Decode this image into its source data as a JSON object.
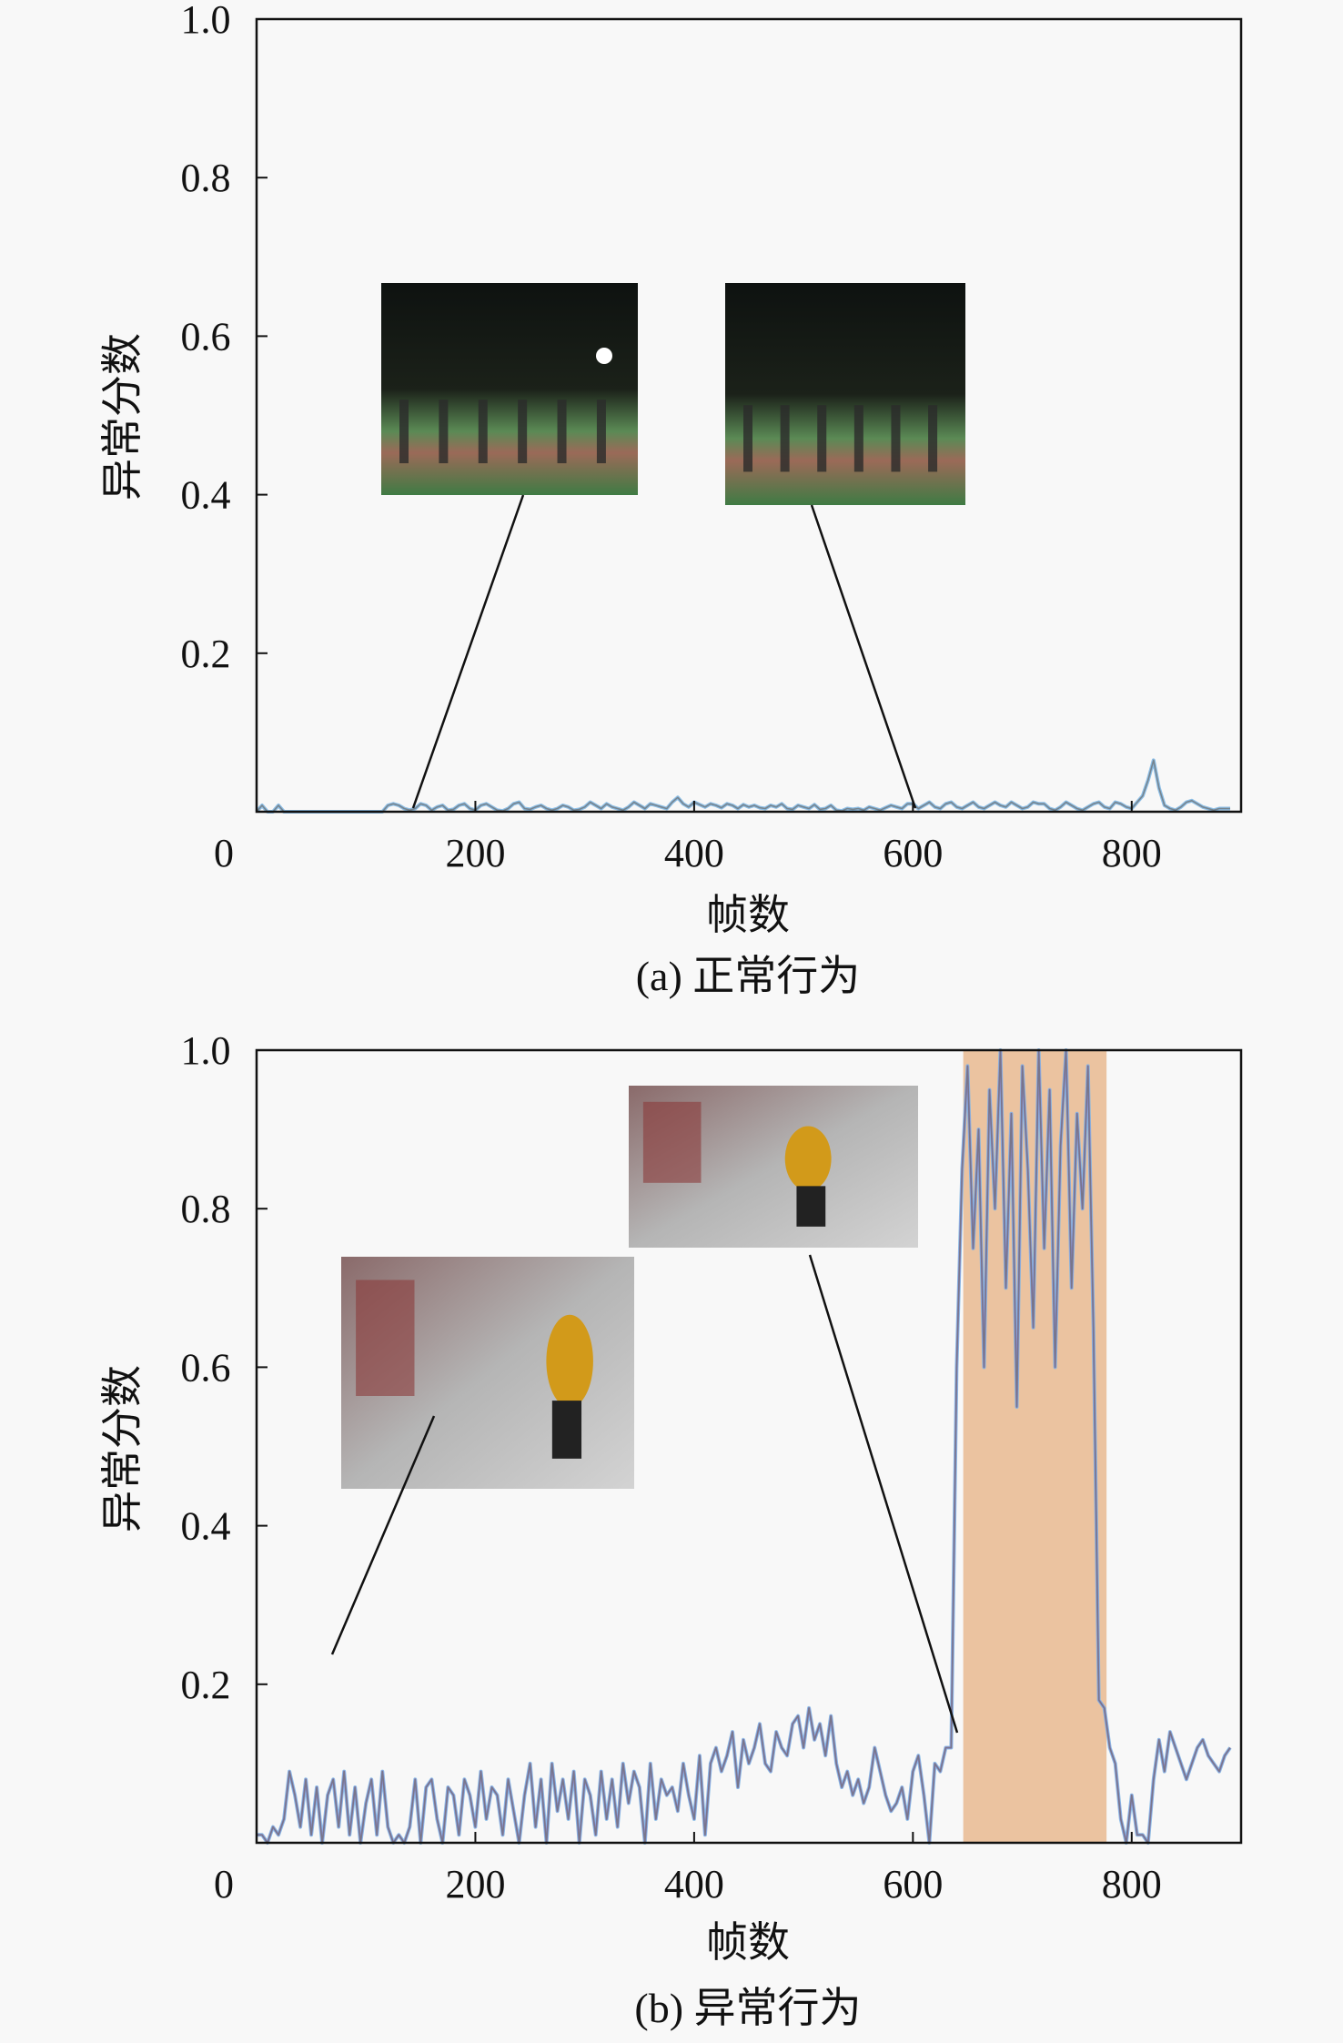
{
  "chart_data": [
    {
      "type": "line",
      "caption": "(a) 正常行为",
      "xlabel": "帧数",
      "ylabel": "异常分数",
      "xlim": [
        0,
        900
      ],
      "ylim": [
        0,
        1.0
      ],
      "x_ticks": [
        "0",
        "200",
        "400",
        "600",
        "800"
      ],
      "x_tick_values": [
        0,
        200,
        400,
        600,
        800
      ],
      "y_ticks": [
        "0.2",
        "0.4",
        "0.6",
        "0.8",
        "1.0"
      ],
      "y_tick_values": [
        0.2,
        0.4,
        0.6,
        0.8,
        1.0
      ],
      "grid": false,
      "x_step": 5,
      "values": [
        0,
        0.008,
        0,
        0,
        0.008,
        0,
        0,
        0,
        0,
        0,
        0,
        0,
        0,
        0,
        0,
        0,
        0,
        0,
        0,
        0,
        0,
        0,
        0,
        0,
        0.008,
        0.01,
        0.008,
        0.004,
        0.002,
        0.004,
        0.01,
        0.008,
        0.002,
        0.006,
        0.008,
        0.002,
        0.003,
        0.008,
        0.01,
        0.004,
        0.002,
        0.008,
        0.01,
        0.006,
        0.002,
        0.001,
        0.004,
        0.01,
        0.012,
        0.004,
        0.003,
        0.006,
        0.008,
        0.004,
        0.002,
        0.004,
        0.008,
        0.006,
        0.002,
        0.003,
        0.006,
        0.012,
        0.008,
        0.004,
        0.01,
        0.006,
        0.004,
        0.002,
        0.006,
        0.012,
        0.008,
        0.004,
        0.01,
        0.008,
        0.006,
        0.004,
        0.012,
        0.018,
        0.01,
        0.006,
        0.012,
        0.009,
        0.006,
        0.01,
        0.008,
        0.005,
        0.01,
        0.008,
        0.004,
        0.009,
        0.006,
        0.008,
        0.005,
        0.004,
        0.008,
        0.006,
        0.01,
        0.004,
        0.003,
        0.008,
        0.006,
        0.004,
        0.009,
        0.003,
        0.004,
        0.008,
        0.002,
        0.001,
        0.004,
        0.003,
        0.004,
        0.002,
        0.006,
        0.004,
        0.002,
        0.005,
        0.008,
        0.006,
        0.004,
        0.01,
        0.01,
        0.004,
        0.008,
        0.012,
        0.006,
        0.004,
        0.01,
        0.012,
        0.006,
        0.004,
        0.008,
        0.012,
        0.006,
        0.004,
        0.008,
        0.012,
        0.008,
        0.006,
        0.012,
        0.008,
        0.004,
        0.006,
        0.012,
        0.01,
        0.01,
        0.004,
        0.002,
        0.006,
        0.012,
        0.008,
        0.004,
        0.002,
        0.006,
        0.01,
        0.012,
        0.006,
        0.004,
        0.012,
        0.01,
        0.006,
        0.004,
        0.012,
        0.02,
        0.04,
        0.065,
        0.03,
        0.008,
        0.004,
        0.002,
        0.006,
        0.012,
        0.014,
        0.01,
        0.006,
        0.004,
        0.002,
        0.004,
        0.004,
        0.004
      ],
      "line_colors": [
        "#7fb7e3",
        "#707070"
      ],
      "insets": [
        {
          "kind": "night-field-photo",
          "points_to_frame": 140
        },
        {
          "kind": "night-field-photo",
          "points_to_frame": 600
        }
      ]
    },
    {
      "type": "line",
      "caption": "(b) 异常行为",
      "xlabel": "帧数",
      "ylabel": "异常分数",
      "xlim": [
        0,
        900
      ],
      "ylim": [
        0,
        1.0
      ],
      "x_ticks": [
        "0",
        "200",
        "400",
        "600",
        "800"
      ],
      "x_tick_values": [
        0,
        200,
        400,
        600,
        800
      ],
      "y_ticks": [
        "0.2",
        "0.4",
        "0.6",
        "0.8",
        "1.0"
      ],
      "y_tick_values": [
        0.2,
        0.4,
        0.6,
        0.8,
        1.0
      ],
      "grid": false,
      "x_step": 5,
      "values": [
        0.01,
        0.01,
        0.0,
        0.02,
        0.01,
        0.03,
        0.09,
        0.06,
        0.02,
        0.08,
        0.01,
        0.07,
        0.0,
        0.06,
        0.08,
        0.02,
        0.09,
        0.01,
        0.07,
        0.0,
        0.05,
        0.08,
        0.01,
        0.09,
        0.02,
        0.0,
        0.01,
        0.0,
        0.02,
        0.08,
        0.0,
        0.07,
        0.08,
        0.03,
        0.0,
        0.07,
        0.06,
        0.01,
        0.08,
        0.06,
        0.02,
        0.09,
        0.03,
        0.07,
        0.06,
        0.01,
        0.08,
        0.04,
        0.0,
        0.06,
        0.1,
        0.02,
        0.08,
        0.0,
        0.1,
        0.04,
        0.08,
        0.03,
        0.09,
        0.0,
        0.08,
        0.06,
        0.01,
        0.09,
        0.03,
        0.08,
        0.02,
        0.1,
        0.05,
        0.09,
        0.07,
        0.0,
        0.1,
        0.03,
        0.08,
        0.06,
        0.07,
        0.04,
        0.1,
        0.06,
        0.03,
        0.11,
        0.01,
        0.1,
        0.12,
        0.09,
        0.11,
        0.14,
        0.07,
        0.13,
        0.1,
        0.12,
        0.15,
        0.1,
        0.09,
        0.14,
        0.12,
        0.11,
        0.15,
        0.16,
        0.12,
        0.17,
        0.13,
        0.15,
        0.11,
        0.16,
        0.1,
        0.07,
        0.09,
        0.06,
        0.08,
        0.05,
        0.07,
        0.12,
        0.09,
        0.06,
        0.04,
        0.05,
        0.07,
        0.03,
        0.09,
        0.11,
        0.06,
        0.0,
        0.1,
        0.09,
        0.12,
        0.12,
        0.6,
        0.85,
        0.98,
        0.75,
        0.9,
        0.6,
        0.95,
        0.8,
        1.0,
        0.7,
        0.92,
        0.55,
        0.98,
        0.85,
        0.65,
        1.0,
        0.75,
        0.95,
        0.6,
        0.88,
        1.0,
        0.7,
        0.92,
        0.8,
        0.98,
        0.65,
        0.18,
        0.17,
        0.12,
        0.1,
        0.03,
        0.0,
        0.06,
        0.01,
        0.01,
        0.0,
        0.08,
        0.13,
        0.09,
        0.14,
        0.12,
        0.1,
        0.08,
        0.1,
        0.12,
        0.13,
        0.11,
        0.1,
        0.09,
        0.11,
        0.12
      ],
      "line_colors": [
        "#7fb7e3",
        "#8f84d4",
        "#707070"
      ],
      "highlight_range": [
        646,
        777
      ],
      "highlight_color": "#ebc3a0",
      "insets": [
        {
          "kind": "corridor-person-photo",
          "points_to_frame": 70
        },
        {
          "kind": "corridor-person-photo",
          "points_to_frame": 640
        }
      ]
    }
  ]
}
